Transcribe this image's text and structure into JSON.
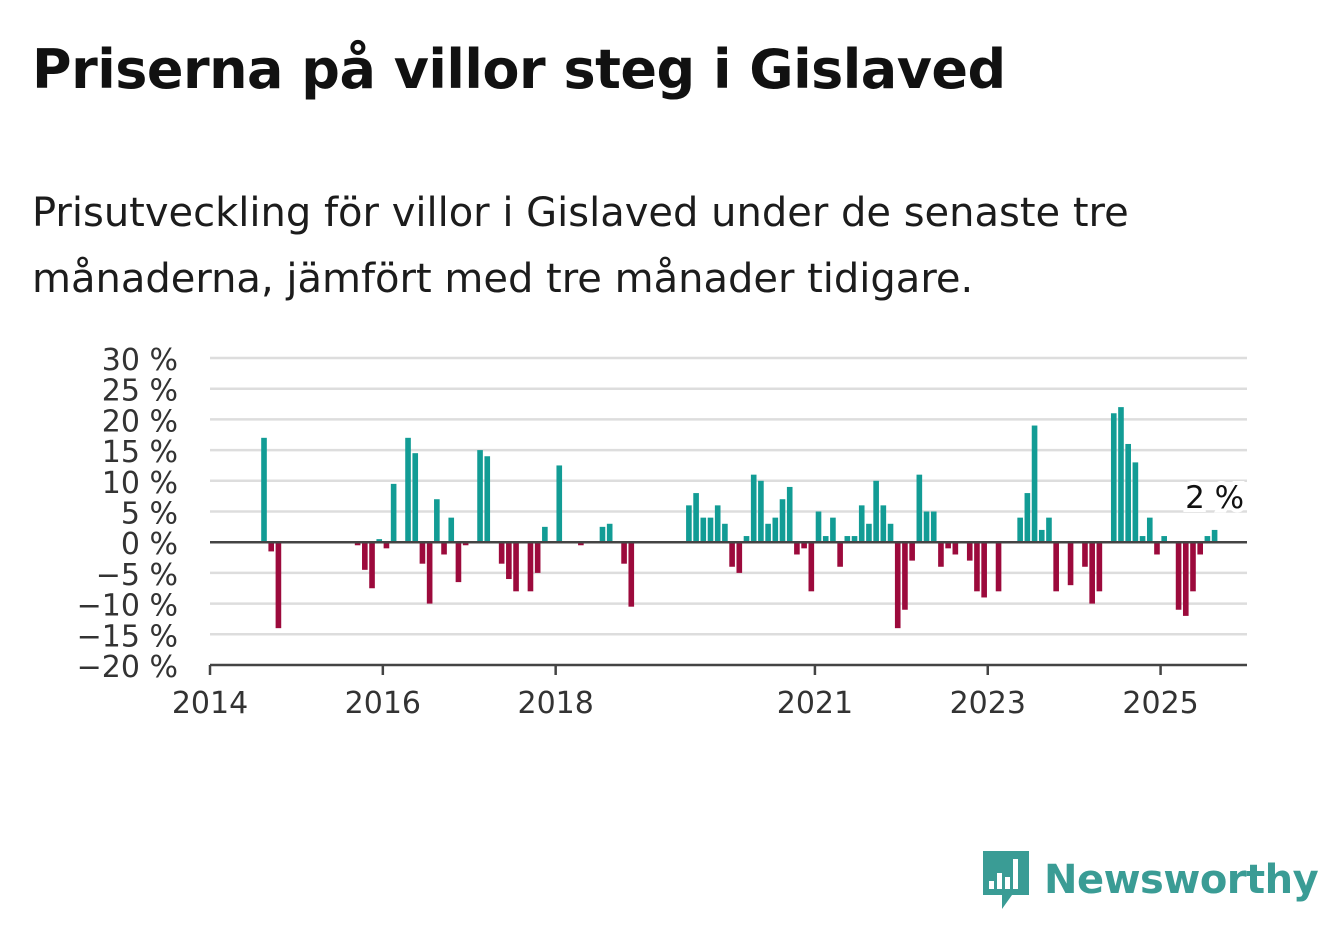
{
  "title": "Priserna på villor steg i Gislaved",
  "subtitle": "Prisutveckling för villor i Gislaved under de senaste tre månaderna, jämfört med tre månader tidigare.",
  "brand": "Newsworthy",
  "colors": {
    "positive": "#129c95",
    "negative": "#9c0a3c",
    "grid": "#dddddd",
    "axis": "#444444",
    "brand": "#3a9c95"
  },
  "chart_data": {
    "type": "bar",
    "ylim": [
      -20,
      30
    ],
    "yticks": [
      30,
      25,
      20,
      15,
      10,
      5,
      0,
      -5,
      -10,
      -15,
      -20
    ],
    "ytick_labels": [
      "30 %",
      "25 %",
      "20 %",
      "15 %",
      "10 %",
      "5 %",
      "0 %",
      "−5 %",
      "−10 %",
      "−15 %",
      "−20 %"
    ],
    "xlim": [
      "2014-01",
      "2026-01"
    ],
    "xticks": [
      {
        "date": "2014-01",
        "label": "2014"
      },
      {
        "date": "2016-01",
        "label": "2016"
      },
      {
        "date": "2018-01",
        "label": "2018"
      },
      {
        "date": "2021-01",
        "label": "2021"
      },
      {
        "date": "2023-01",
        "label": "2023"
      },
      {
        "date": "2025-01",
        "label": "2025"
      }
    ],
    "grid": true,
    "last_label": "2 %",
    "series": [
      {
        "values": [
          {
            "x": "2014-08",
            "y": 17
          },
          {
            "x": "2014-09",
            "y": -1.5
          },
          {
            "x": "2014-10",
            "y": -14
          },
          {
            "x": "2015-09",
            "y": -0.5
          },
          {
            "x": "2015-10",
            "y": -4.5
          },
          {
            "x": "2015-11",
            "y": -7.5
          },
          {
            "x": "2015-12",
            "y": 0.5
          },
          {
            "x": "2016-01",
            "y": -1
          },
          {
            "x": "2016-02",
            "y": 9.5
          },
          {
            "x": "2016-04",
            "y": 17
          },
          {
            "x": "2016-05",
            "y": 14.5
          },
          {
            "x": "2016-06",
            "y": -3.5
          },
          {
            "x": "2016-07",
            "y": -10
          },
          {
            "x": "2016-08",
            "y": 7
          },
          {
            "x": "2016-09",
            "y": -2
          },
          {
            "x": "2016-10",
            "y": 4
          },
          {
            "x": "2016-11",
            "y": -6.5
          },
          {
            "x": "2016-12",
            "y": -0.5
          },
          {
            "x": "2017-02",
            "y": 15
          },
          {
            "x": "2017-03",
            "y": 14
          },
          {
            "x": "2017-05",
            "y": -3.5
          },
          {
            "x": "2017-06",
            "y": -6
          },
          {
            "x": "2017-07",
            "y": -8
          },
          {
            "x": "2017-09",
            "y": -8
          },
          {
            "x": "2017-10",
            "y": -5
          },
          {
            "x": "2017-11",
            "y": 2.5
          },
          {
            "x": "2018-01",
            "y": 12.5
          },
          {
            "x": "2018-04",
            "y": -0.5
          },
          {
            "x": "2018-07",
            "y": 2.5
          },
          {
            "x": "2018-08",
            "y": 3
          },
          {
            "x": "2018-10",
            "y": -3.5
          },
          {
            "x": "2018-11",
            "y": -10.5
          },
          {
            "x": "2019-07",
            "y": 6
          },
          {
            "x": "2019-08",
            "y": 8
          },
          {
            "x": "2019-09",
            "y": 4
          },
          {
            "x": "2019-10",
            "y": 4
          },
          {
            "x": "2019-11",
            "y": 6
          },
          {
            "x": "2019-12",
            "y": 3
          },
          {
            "x": "2020-01",
            "y": -4
          },
          {
            "x": "2020-02",
            "y": -5
          },
          {
            "x": "2020-03",
            "y": 1
          },
          {
            "x": "2020-04",
            "y": 11
          },
          {
            "x": "2020-05",
            "y": 10
          },
          {
            "x": "2020-06",
            "y": 3
          },
          {
            "x": "2020-07",
            "y": 4
          },
          {
            "x": "2020-08",
            "y": 7
          },
          {
            "x": "2020-09",
            "y": 9
          },
          {
            "x": "2020-10",
            "y": -2
          },
          {
            "x": "2020-11",
            "y": -1
          },
          {
            "x": "2020-12",
            "y": -8
          },
          {
            "x": "2021-01",
            "y": 5
          },
          {
            "x": "2021-02",
            "y": 1
          },
          {
            "x": "2021-03",
            "y": 4
          },
          {
            "x": "2021-04",
            "y": -4
          },
          {
            "x": "2021-05",
            "y": 1
          },
          {
            "x": "2021-06",
            "y": 1
          },
          {
            "x": "2021-07",
            "y": 6
          },
          {
            "x": "2021-08",
            "y": 3
          },
          {
            "x": "2021-09",
            "y": 10
          },
          {
            "x": "2021-10",
            "y": 6
          },
          {
            "x": "2021-11",
            "y": 3
          },
          {
            "x": "2021-12",
            "y": -14
          },
          {
            "x": "2022-01",
            "y": -11
          },
          {
            "x": "2022-02",
            "y": -3
          },
          {
            "x": "2022-03",
            "y": 11
          },
          {
            "x": "2022-04",
            "y": 5
          },
          {
            "x": "2022-05",
            "y": 5
          },
          {
            "x": "2022-06",
            "y": -4
          },
          {
            "x": "2022-07",
            "y": -1
          },
          {
            "x": "2022-08",
            "y": -2
          },
          {
            "x": "2022-10",
            "y": -3
          },
          {
            "x": "2022-11",
            "y": -8
          },
          {
            "x": "2022-12",
            "y": -9
          },
          {
            "x": "2023-02",
            "y": -8
          },
          {
            "x": "2023-05",
            "y": 4
          },
          {
            "x": "2023-06",
            "y": 8
          },
          {
            "x": "2023-07",
            "y": 19
          },
          {
            "x": "2023-08",
            "y": 2
          },
          {
            "x": "2023-09",
            "y": 4
          },
          {
            "x": "2023-10",
            "y": -8
          },
          {
            "x": "2023-12",
            "y": -7
          },
          {
            "x": "2024-02",
            "y": -4
          },
          {
            "x": "2024-03",
            "y": -10
          },
          {
            "x": "2024-04",
            "y": -8
          },
          {
            "x": "2024-06",
            "y": 21
          },
          {
            "x": "2024-07",
            "y": 22
          },
          {
            "x": "2024-08",
            "y": 16
          },
          {
            "x": "2024-09",
            "y": 13
          },
          {
            "x": "2024-10",
            "y": 1
          },
          {
            "x": "2024-11",
            "y": 4
          },
          {
            "x": "2024-12",
            "y": -2
          },
          {
            "x": "2025-01",
            "y": 1
          },
          {
            "x": "2025-03",
            "y": -11
          },
          {
            "x": "2025-04",
            "y": -12
          },
          {
            "x": "2025-05",
            "y": -8
          },
          {
            "x": "2025-06",
            "y": -2
          },
          {
            "x": "2025-07",
            "y": 1
          },
          {
            "x": "2025-08",
            "y": 2
          }
        ]
      }
    ]
  }
}
